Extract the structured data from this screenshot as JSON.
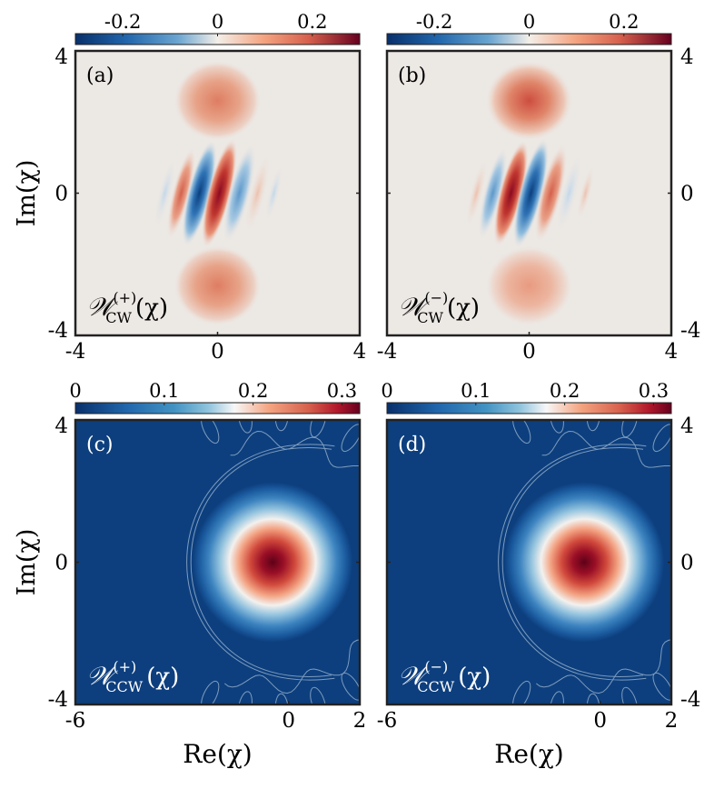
{
  "colors": {
    "diverging": [
      "#08306b",
      "#2166ac",
      "#6aa5d0",
      "#f3efe9",
      "#f4a582",
      "#d6604d",
      "#67001f"
    ],
    "sequential": [
      "#08306b",
      "#2166ac",
      "#4393c3",
      "#92c5de",
      "#f7f7f7",
      "#f4a582",
      "#d6604d",
      "#b2182b",
      "#67001f"
    ],
    "background_top": "#ece8e4",
    "background_bottom": "#0d3f7e",
    "contour": "#9ab4cf"
  },
  "chart_data": [
    {
      "panel": "a",
      "label": "(a)",
      "type": "heatmap",
      "legend_label": "𝒲_CW^(+)(χ)",
      "legend_main": "𝒲",
      "legend_sub": "CW",
      "legend_sup": "(+)",
      "legend_arg": "(χ)",
      "colorbar": {
        "ticks": [
          -0.2,
          0,
          0.2
        ],
        "tick_labels": [
          "-0.2",
          "0",
          "0.2"
        ],
        "range": [
          -0.3,
          0.3
        ]
      },
      "xlim": [
        -4,
        4
      ],
      "ylim": [
        -4,
        4
      ],
      "xticks": [
        "-4",
        "0",
        "4"
      ],
      "yticks": [
        "4",
        "0",
        "-4"
      ],
      "ylabel": "Im(χ)",
      "xlabel": "",
      "lobes": [
        {
          "x": 0,
          "y": 2.6,
          "value": 0.22
        },
        {
          "x": 0,
          "y": -2.6,
          "value": 0.16
        }
      ],
      "fringe_sign": 1
    },
    {
      "panel": "b",
      "label": "(b)",
      "type": "heatmap",
      "legend_label": "𝒲_CW^(−)(χ)",
      "legend_main": "𝒲",
      "legend_sub": "CW",
      "legend_sup": "(−)",
      "legend_arg": "(χ)",
      "colorbar": {
        "ticks": [
          -0.2,
          0,
          0.2
        ],
        "tick_labels": [
          "-0.2",
          "0",
          "0.2"
        ],
        "range": [
          -0.3,
          0.3
        ]
      },
      "xlim": [
        -4,
        4
      ],
      "ylim": [
        -4,
        4
      ],
      "xticks": [
        "-4",
        "0",
        "4"
      ],
      "yticks": [
        "4",
        "0",
        "-4"
      ],
      "ylabel": "",
      "xlabel": "",
      "lobes": [
        {
          "x": 0,
          "y": 2.6,
          "value": 0.28
        },
        {
          "x": 0,
          "y": -2.6,
          "value": 0.12
        }
      ],
      "fringe_sign": -1
    },
    {
      "panel": "c",
      "label": "(c)",
      "type": "heatmap",
      "legend_label": "𝒲_CCW^(+)(χ)",
      "legend_main": "𝒲",
      "legend_sub": "CCW",
      "legend_sup": "(+)",
      "legend_arg": "(χ)",
      "colorbar": {
        "ticks": [
          0,
          0.1,
          0.2,
          0.3
        ],
        "tick_labels": [
          "0",
          "0.1",
          "0.2",
          "0.3"
        ],
        "range": [
          0,
          0.32
        ]
      },
      "xlim": [
        -6,
        2
      ],
      "ylim": [
        -4,
        4
      ],
      "xticks": [
        "-6",
        "0",
        "2"
      ],
      "yticks": [
        "4",
        "0",
        "-4"
      ],
      "ylabel": "Im(χ)",
      "xlabel": "Re(χ)",
      "peak": {
        "x": -0.45,
        "y": 0,
        "value": 0.32
      }
    },
    {
      "panel": "d",
      "label": "(d)",
      "type": "heatmap",
      "legend_label": "𝒲_CCW^(−)(χ)",
      "legend_main": "𝒲",
      "legend_sub": "CCW",
      "legend_sup": "(−)",
      "legend_arg": "(χ)",
      "colorbar": {
        "ticks": [
          0,
          0.1,
          0.2,
          0.3
        ],
        "tick_labels": [
          "0",
          "0.1",
          "0.2",
          "0.3"
        ],
        "range": [
          0,
          0.32
        ]
      },
      "xlim": [
        -6,
        2
      ],
      "ylim": [
        -4,
        4
      ],
      "xticks": [
        "-6",
        "0",
        "2"
      ],
      "yticks": [
        "4",
        "0",
        "-4"
      ],
      "ylabel": "",
      "xlabel": "Re(χ)",
      "peak": {
        "x": -0.45,
        "y": 0,
        "value": 0.32
      }
    }
  ]
}
